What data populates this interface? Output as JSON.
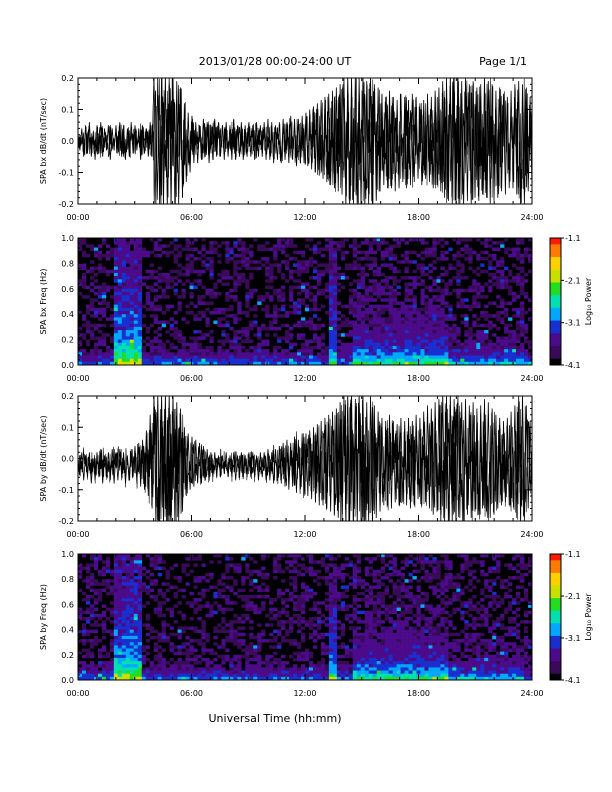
{
  "header": {
    "title": "2013/01/28  00:00-24:00 UT",
    "page": "Page 1/1"
  },
  "footer": {
    "xlabel": "Universal Time (hh:mm)"
  },
  "colors": {
    "trace": "#000000",
    "colormap": [
      "#000000",
      "#3a0a5a",
      "#4b0b8a",
      "#1a2fd0",
      "#00a8ff",
      "#00e0b0",
      "#22dd22",
      "#c8e000",
      "#ffd000",
      "#ff7a00",
      "#ff1a00"
    ]
  },
  "chart_data": [
    {
      "type": "line",
      "ylabel": "SPA bx dB/dt (nT/sec)",
      "ylim": [
        -0.2,
        0.2
      ],
      "yticks": [
        "0.2",
        "0.1",
        "0.0",
        "-0.1",
        "-0.2"
      ],
      "xlim": [
        "00:00",
        "24:00"
      ],
      "xticks": [
        "00:00",
        "06:00",
        "12:00",
        "18:00",
        "24:00"
      ],
      "series": [
        {
          "values": [
            0.02,
            -0.03,
            0.04,
            -0.05,
            0.05,
            -0.04,
            0.06,
            -0.05,
            0.03,
            -0.06,
            0.05,
            -0.04,
            0.06,
            -0.05,
            0.04,
            -0.03,
            0.05,
            -0.06,
            0.04,
            -0.03,
            0.05,
            -0.04,
            0.06,
            -0.05,
            0.05,
            -0.06,
            0.04,
            -0.05,
            0.06,
            -0.04,
            0.05,
            -0.03,
            0.04,
            -0.06,
            0.05,
            -0.04,
            0.04,
            -0.05,
            0.06,
            -0.05,
            0.21,
            -0.21,
            0.21,
            -0.21,
            0.21,
            -0.21,
            0.21,
            -0.21,
            0.2,
            -0.21,
            0.21,
            -0.21,
            0.19,
            -0.2,
            0.17,
            -0.18,
            0.12,
            -0.13,
            0.09,
            -0.1,
            0.08,
            -0.07,
            0.06,
            -0.07,
            0.05,
            -0.06,
            0.07,
            -0.05,
            0.06,
            -0.07,
            0.05,
            -0.06,
            0.07,
            -0.05,
            0.06,
            -0.05,
            0.05,
            -0.06,
            0.06,
            -0.05,
            0.05,
            -0.06,
            0.07,
            -0.06,
            0.05,
            -0.05,
            0.06,
            -0.06,
            0.05,
            -0.05,
            0.06,
            -0.05,
            0.05,
            -0.06,
            0.06,
            -0.05,
            0.05,
            -0.05,
            0.06,
            -0.06,
            0.07,
            -0.06,
            0.06,
            -0.07,
            0.05,
            -0.06,
            0.06,
            -0.07,
            0.07,
            -0.06,
            0.06,
            -0.07,
            0.08,
            -0.06,
            0.07,
            -0.08,
            0.07,
            -0.07,
            0.08,
            -0.07,
            0.09,
            -0.08,
            0.1,
            -0.09,
            0.11,
            -0.1,
            0.12,
            -0.11,
            0.13,
            -0.12,
            0.14,
            -0.13,
            0.15,
            -0.14,
            0.16,
            -0.15,
            0.17,
            -0.16,
            0.18,
            -0.17,
            0.2,
            -0.21,
            0.21,
            -0.21,
            0.21,
            -0.2,
            0.21,
            -0.21,
            0.2,
            -0.21,
            0.21,
            -0.21,
            0.19,
            -0.2,
            0.21,
            -0.21,
            0.18,
            -0.19,
            0.17,
            -0.16,
            0.15,
            -0.14,
            0.14,
            -0.15,
            0.16,
            -0.15,
            0.14,
            -0.16,
            0.13,
            -0.15,
            0.15,
            -0.13,
            0.14,
            -0.15,
            0.13,
            -0.14,
            0.15,
            -0.13,
            0.14,
            -0.12,
            0.12,
            -0.14,
            0.13,
            -0.12,
            0.15,
            -0.13,
            0.14,
            -0.15,
            0.16,
            -0.14,
            0.17,
            -0.16,
            0.19,
            -0.18,
            0.2,
            -0.19,
            0.21,
            -0.2,
            0.2,
            -0.21,
            0.21,
            -0.2,
            0.19,
            -0.21,
            0.2,
            -0.19,
            0.18,
            -0.2,
            0.19,
            -0.18,
            0.17,
            -0.19,
            0.18,
            -0.17,
            0.2,
            -0.18,
            0.19,
            -0.2,
            0.18,
            -0.19,
            0.16,
            -0.18,
            0.17,
            -0.16,
            0.15,
            -0.17,
            0.14,
            -0.15,
            0.16,
            -0.15,
            0.18,
            -0.17,
            0.19,
            -0.21,
            0.18,
            -0.2,
            0.17,
            -0.16,
            0.14,
            -0.15
          ]
        }
      ]
    },
    {
      "type": "heatmap",
      "ylabel": "SPA bx Freq (Hz)",
      "ylim": [
        0.0,
        1.0
      ],
      "yticks": [
        "1.0",
        "0.8",
        "0.6",
        "0.4",
        "0.2",
        "0.0"
      ],
      "xlim": [
        "00:00",
        "24:00"
      ],
      "xticks": [
        "00:00",
        "06:00",
        "12:00",
        "18:00",
        "24:00"
      ],
      "colorbar": {
        "label": "Log₁₀ Power",
        "range": [
          -4.1,
          -1.1
        ],
        "ticks": [
          "-1.1",
          "-2.1",
          "-3.1",
          "-4.1"
        ]
      }
    },
    {
      "type": "line",
      "ylabel": "SPA by dB/dt (nT/sec)",
      "ylim": [
        -0.2,
        0.2
      ],
      "yticks": [
        "0.2",
        "0.1",
        "0.0",
        "-0.1",
        "-0.2"
      ],
      "xlim": [
        "00:00",
        "24:00"
      ],
      "xticks": [
        "00:00",
        "06:00",
        "12:00",
        "18:00",
        "24:00"
      ],
      "series": [
        {
          "values": [
            -0.02,
            -0.05,
            0.02,
            -0.07,
            0.01,
            -0.06,
            0.02,
            -0.08,
            0.0,
            -0.07,
            0.02,
            -0.06,
            0.03,
            -0.08,
            0.01,
            -0.06,
            0.02,
            -0.07,
            0.03,
            -0.08,
            0.02,
            -0.07,
            0.03,
            -0.06,
            0.02,
            -0.08,
            0.01,
            -0.07,
            0.03,
            -0.06,
            0.04,
            -0.08,
            0.05,
            -0.09,
            0.06,
            -0.1,
            0.09,
            -0.12,
            0.14,
            -0.16,
            0.21,
            -0.21,
            0.21,
            -0.21,
            0.21,
            -0.21,
            0.21,
            -0.21,
            0.21,
            -0.21,
            0.21,
            -0.21,
            0.18,
            -0.2,
            0.16,
            -0.17,
            0.1,
            -0.12,
            0.08,
            -0.1,
            0.07,
            -0.09,
            0.06,
            -0.08,
            0.05,
            -0.08,
            0.04,
            -0.07,
            0.03,
            -0.07,
            0.02,
            -0.06,
            0.02,
            -0.06,
            0.01,
            -0.06,
            0.01,
            -0.05,
            0.02,
            -0.06,
            0.01,
            -0.06,
            0.02,
            -0.07,
            0.01,
            -0.06,
            0.02,
            -0.06,
            0.01,
            -0.06,
            0.02,
            -0.06,
            0.02,
            -0.06,
            0.01,
            -0.07,
            0.02,
            -0.06,
            0.02,
            -0.07,
            0.03,
            -0.07,
            0.02,
            -0.08,
            0.03,
            -0.07,
            0.04,
            -0.08,
            0.05,
            -0.09,
            0.06,
            -0.1,
            0.05,
            -0.09,
            0.07,
            -0.11,
            0.06,
            -0.1,
            0.08,
            -0.12,
            0.08,
            -0.12,
            0.09,
            -0.13,
            0.1,
            -0.14,
            0.11,
            -0.15,
            0.12,
            -0.15,
            0.13,
            -0.16,
            0.14,
            -0.17,
            0.15,
            -0.18,
            0.16,
            -0.19,
            0.18,
            -0.2,
            0.2,
            -0.21,
            0.21,
            -0.21,
            0.21,
            -0.21,
            0.19,
            -0.21,
            0.21,
            -0.2,
            0.21,
            -0.21,
            0.18,
            -0.2,
            0.2,
            -0.21,
            0.17,
            -0.19,
            0.15,
            -0.17,
            0.13,
            -0.15,
            0.12,
            -0.15,
            0.14,
            -0.16,
            0.12,
            -0.14,
            0.11,
            -0.15,
            0.13,
            -0.14,
            0.12,
            -0.15,
            0.13,
            -0.16,
            0.12,
            -0.15,
            0.14,
            -0.13,
            0.13,
            -0.15,
            0.15,
            -0.14,
            0.17,
            -0.16,
            0.16,
            -0.18,
            0.18,
            -0.17,
            0.19,
            -0.2,
            0.21,
            -0.2,
            0.2,
            -0.21,
            0.21,
            -0.2,
            0.19,
            -0.21,
            0.2,
            -0.19,
            0.18,
            -0.2,
            0.19,
            -0.18,
            0.17,
            -0.19,
            0.18,
            -0.17,
            0.16,
            -0.18,
            0.17,
            -0.16,
            0.19,
            -0.17,
            0.18,
            -0.19,
            0.16,
            -0.18,
            0.14,
            -0.16,
            0.13,
            -0.15,
            0.12,
            -0.14,
            0.13,
            -0.15,
            0.15,
            -0.14,
            0.17,
            -0.19,
            0.2,
            -0.21,
            0.21,
            -0.2,
            0.17,
            -0.16,
            0.12,
            -0.13
          ]
        }
      ]
    },
    {
      "type": "heatmap",
      "ylabel": "SPA by Freq (Hz)",
      "ylim": [
        0.0,
        1.0
      ],
      "yticks": [
        "1.0",
        "0.8",
        "0.6",
        "0.4",
        "0.2",
        "0.0"
      ],
      "xlim": [
        "00:00",
        "24:00"
      ],
      "xticks": [
        "00:00",
        "06:00",
        "12:00",
        "18:00",
        "24:00"
      ],
      "colorbar": {
        "label": "Log₁₀ Power",
        "range": [
          -4.1,
          -1.1
        ],
        "ticks": [
          "-1.1",
          "-2.1",
          "-3.1",
          "-4.1"
        ]
      }
    }
  ]
}
